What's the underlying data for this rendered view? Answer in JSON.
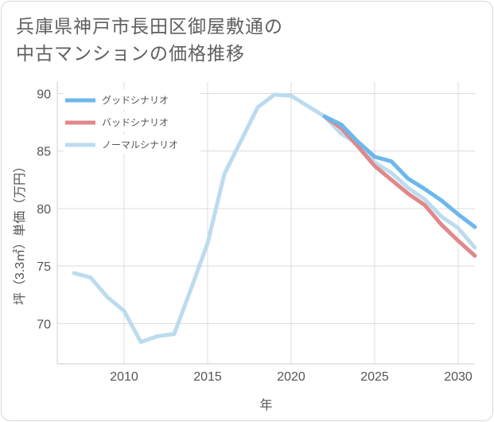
{
  "title_line1": "兵庫県神戸市長田区御屋敷通の",
  "title_line2": "中古マンションの価格推移",
  "chart_data": {
    "type": "line",
    "xlabel": "年",
    "ylabel": "坪（3.3㎡）単価（万円）",
    "xlim": [
      2006,
      2031
    ],
    "ylim": [
      66.5,
      91
    ],
    "xticks": [
      2010,
      2015,
      2020,
      2025,
      2030
    ],
    "yticks": [
      70,
      75,
      80,
      85,
      90
    ],
    "grid": true,
    "legend_position": "top-left",
    "series": [
      {
        "name": "グッドシナリオ",
        "color": "#6cb8ec",
        "x": [
          2022,
          2023,
          2024,
          2025,
          2026,
          2027,
          2028,
          2029,
          2030,
          2031
        ],
        "y": [
          88.0,
          87.3,
          85.8,
          84.5,
          84.1,
          82.6,
          81.7,
          80.7,
          79.5,
          78.4
        ]
      },
      {
        "name": "バッドシナリオ",
        "color": "#e0888b",
        "x": [
          2022,
          2023,
          2024,
          2025,
          2026,
          2027,
          2028,
          2029,
          2030,
          2031
        ],
        "y": [
          88.0,
          87.0,
          85.4,
          83.7,
          82.5,
          81.3,
          80.3,
          78.6,
          77.2,
          75.9
        ]
      },
      {
        "name": "ノーマルシナリオ",
        "color": "#bcdcee",
        "x": [
          2007,
          2008,
          2009,
          2010,
          2011,
          2012,
          2013,
          2014,
          2015,
          2016,
          2017,
          2018,
          2019,
          2020,
          2021,
          2022,
          2023,
          2024,
          2025,
          2026,
          2027,
          2028,
          2029,
          2030,
          2031
        ],
        "y": [
          74.4,
          74.0,
          72.3,
          71.1,
          68.4,
          68.9,
          69.1,
          73.0,
          77.0,
          83.0,
          85.9,
          88.8,
          89.9,
          89.8,
          88.9,
          88.0,
          86.5,
          85.6,
          84.0,
          83.1,
          81.8,
          80.8,
          79.3,
          78.3,
          76.6
        ]
      }
    ]
  }
}
